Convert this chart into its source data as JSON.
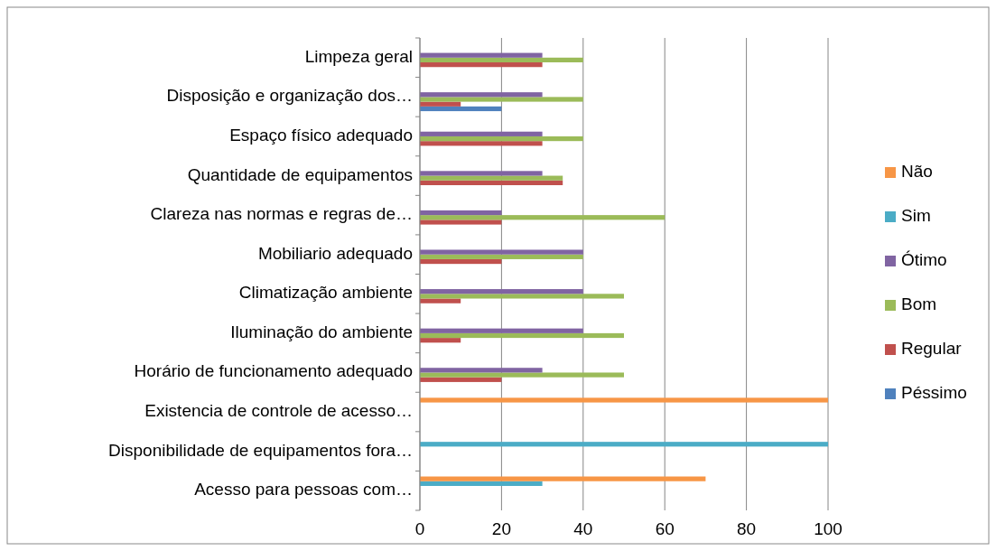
{
  "chart_data": {
    "type": "bar",
    "orientation": "horizontal",
    "categories": [
      "Limpeza geral",
      "Disposição e organização dos…",
      "Espaço físico adequado",
      "Quantidade de equipamentos",
      "Clareza nas normas e regras de…",
      "Mobiliario adequado",
      "Climatização ambiente",
      "Iluminação do ambiente",
      "Horário de funcionamento adequado",
      "Existencia de controle de acesso…",
      "Disponibilidade de equipamentos fora…",
      "Acesso para pessoas com…"
    ],
    "series": [
      {
        "name": "Péssimo",
        "color": "#4f81bd",
        "values": [
          null,
          20,
          null,
          null,
          null,
          null,
          null,
          null,
          null,
          null,
          null,
          null
        ]
      },
      {
        "name": "Regular",
        "color": "#c0504d",
        "values": [
          30,
          10,
          30,
          35,
          20,
          20,
          10,
          10,
          20,
          null,
          null,
          null
        ]
      },
      {
        "name": "Bom",
        "color": "#9bbb59",
        "values": [
          40,
          40,
          40,
          35,
          60,
          40,
          50,
          50,
          50,
          null,
          null,
          null
        ]
      },
      {
        "name": "Ótimo",
        "color": "#8064a2",
        "values": [
          30,
          30,
          30,
          30,
          20,
          40,
          40,
          40,
          30,
          null,
          null,
          null
        ]
      },
      {
        "name": "Sim",
        "color": "#4bacc6",
        "values": [
          null,
          null,
          null,
          null,
          null,
          null,
          null,
          null,
          null,
          null,
          100,
          30
        ]
      },
      {
        "name": "Não",
        "color": "#f79646",
        "values": [
          null,
          null,
          null,
          null,
          null,
          null,
          null,
          null,
          null,
          100,
          null,
          70
        ]
      }
    ],
    "xlim": [
      0,
      100
    ],
    "xticks": [
      0,
      20,
      40,
      60,
      80,
      100
    ],
    "grid": "x",
    "legend": "right"
  }
}
